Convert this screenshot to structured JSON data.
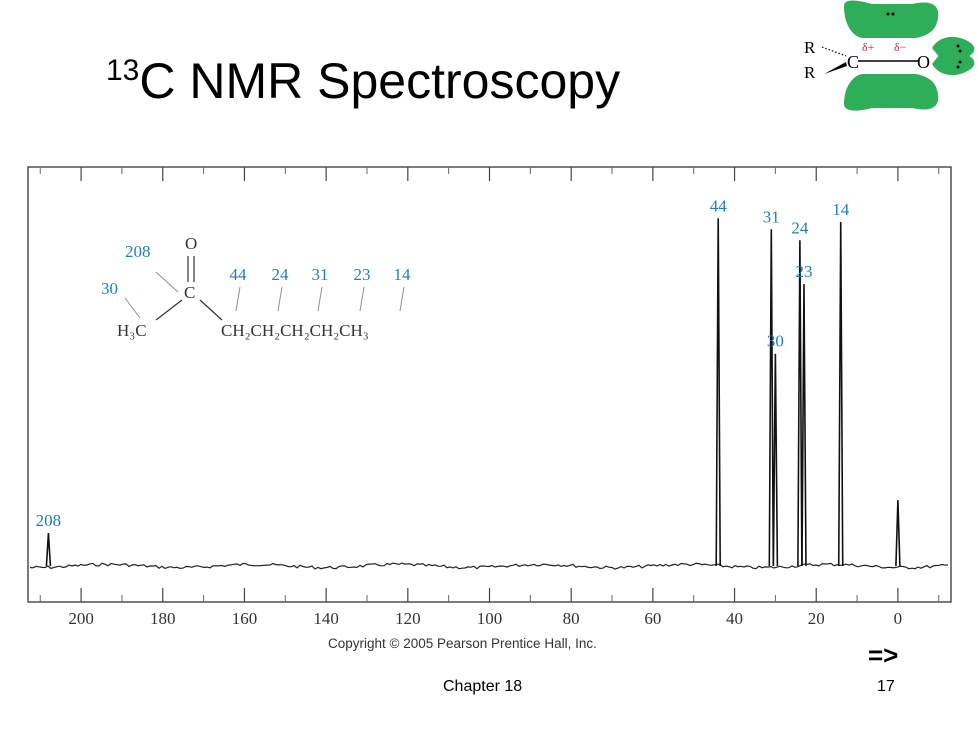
{
  "slide": {
    "title_superscript": "13",
    "title_main": "C NMR Spectroscopy",
    "copyright": "Copyright © 2005 Pearson Prentice Hall, Inc.",
    "next_arrow": "=>",
    "footer_chapter": "Chapter 18",
    "page_number": "17"
  },
  "logo": {
    "r_top": "R",
    "r_bottom": "R",
    "carbon": "C",
    "oxygen": "O",
    "delta_plus": "δ+",
    "delta_minus": "δ−"
  },
  "structure": {
    "oxygen": "O",
    "carbonyl_carbon": "C",
    "methyl": "H₃C",
    "chain": "CH₂CH₂CH₂CH₂CH₃",
    "label_208": "208",
    "label_30": "30",
    "chain_labels": [
      "44",
      "24",
      "31",
      "23",
      "14"
    ]
  },
  "chart_data": {
    "type": "line",
    "x_axis_ticks": [
      200,
      180,
      160,
      140,
      120,
      100,
      80,
      60,
      40,
      20,
      0
    ],
    "xlim": [
      213,
      -13
    ],
    "x_reversed": true,
    "peaks": [
      {
        "shift": 208,
        "label": "208",
        "relative_height": 0.09
      },
      {
        "shift": 44,
        "label": "44",
        "relative_height": 0.95
      },
      {
        "shift": 31,
        "label": "31",
        "relative_height": 0.92
      },
      {
        "shift": 30,
        "label": "30",
        "relative_height": 0.58
      },
      {
        "shift": 24,
        "label": "24",
        "relative_height": 0.89
      },
      {
        "shift": 23,
        "label": "23",
        "relative_height": 0.77
      },
      {
        "shift": 14,
        "label": "14",
        "relative_height": 0.94
      },
      {
        "shift": 0,
        "label": "",
        "relative_height": 0.18
      }
    ],
    "label_color": "#1f7fb8"
  }
}
